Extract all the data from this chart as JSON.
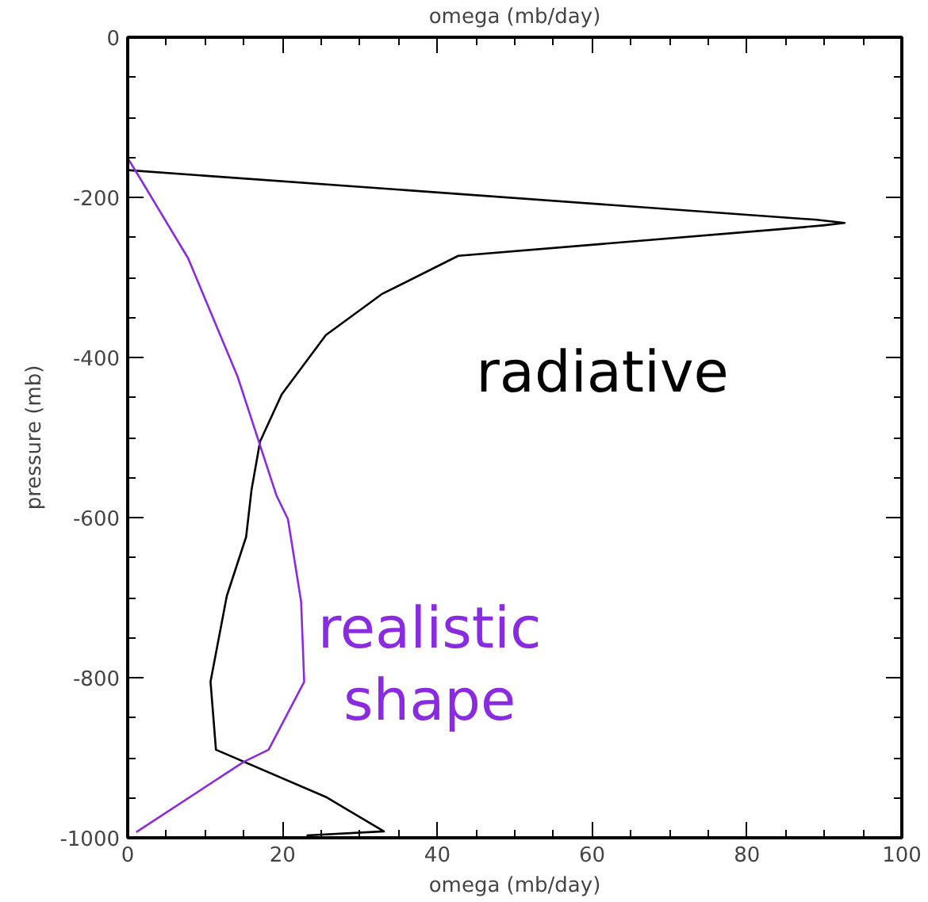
{
  "chart_data": {
    "type": "line",
    "xlabel": "omega (mb/day)",
    "x2label": "omega (mb/day)",
    "ylabel": "pressure (mb)",
    "xlim": [
      0,
      100
    ],
    "xticks": [
      0,
      20,
      40,
      60,
      80,
      100
    ],
    "ylim": [
      -1000,
      0
    ],
    "yticks": [
      -1000,
      -800,
      -600,
      -400,
      -200,
      0
    ],
    "grid": false,
    "marker": "none",
    "line_style": "solid",
    "series": [
      {
        "name": "radiative",
        "color": "#000000",
        "x": [
          0,
          89,
          92.6,
          89.8,
          84,
          42.7,
          32.8,
          25.6,
          19.9,
          17.1,
          16.0,
          15.3,
          12.8,
          10.7,
          11.4,
          25.6,
          33.1,
          23.1
        ],
        "values": [
          -166,
          -228,
          -232,
          -235,
          -240,
          -273,
          -321,
          -372,
          -446,
          -505,
          -565,
          -624,
          -698,
          -805,
          -890,
          -949,
          -992,
          -997
        ]
      },
      {
        "name": "realistic shape",
        "color": "#8a2be2",
        "x": [
          0,
          1.4,
          7.8,
          14.2,
          19.2,
          20.7,
          22.4,
          22.8,
          18.2,
          15.0,
          1.1
        ],
        "values": [
          -151,
          -173,
          -276,
          -424,
          -572,
          -602,
          -705,
          -805,
          -890,
          -905,
          -993
        ]
      }
    ]
  }
}
